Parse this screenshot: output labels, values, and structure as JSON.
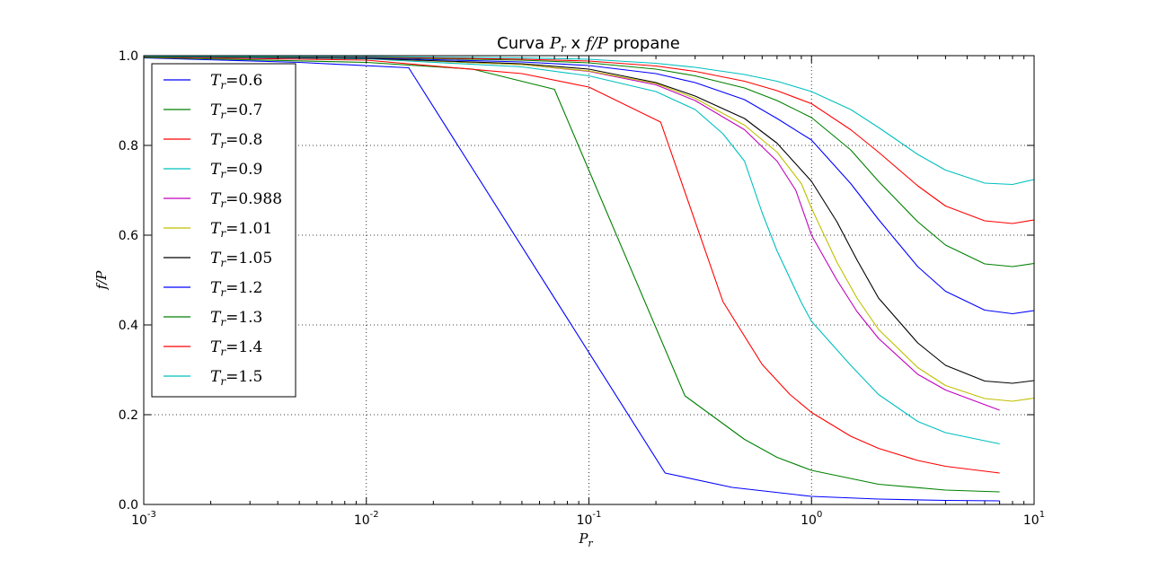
{
  "chart_data": {
    "type": "line",
    "title": {
      "prefix": "Curva ",
      "math1": "P",
      "math1_sub": "r",
      "middle": " x ",
      "math2": "f/P",
      "suffix": " propane"
    },
    "xlabel": {
      "text": "P",
      "sub": "r"
    },
    "ylabel": "f/P",
    "xscale": "log",
    "xlim": [
      0.001,
      10
    ],
    "ylim": [
      0.0,
      1.0
    ],
    "grid": true,
    "legend_position": "upper-left",
    "x_ticks": [
      {
        "value": 0.001,
        "base": "10",
        "exp": "-3"
      },
      {
        "value": 0.01,
        "base": "10",
        "exp": "-2"
      },
      {
        "value": 0.1,
        "base": "10",
        "exp": "-1"
      },
      {
        "value": 1,
        "base": "10",
        "exp": "0"
      },
      {
        "value": 10,
        "base": "10",
        "exp": "1"
      }
    ],
    "y_ticks": [
      {
        "value": 0.0,
        "label": "0.0"
      },
      {
        "value": 0.2,
        "label": "0.2"
      },
      {
        "value": 0.4,
        "label": "0.4"
      },
      {
        "value": 0.6,
        "label": "0.6"
      },
      {
        "value": 0.8,
        "label": "0.8"
      },
      {
        "value": 1.0,
        "label": "1.0"
      }
    ],
    "series": [
      {
        "legend_sym": "T",
        "legend_sub": "r",
        "legend_val": "=0.6",
        "color": "#0000ff",
        "points": [
          [
            0.001,
            0.995
          ],
          [
            0.005,
            0.985
          ],
          [
            0.0155,
            0.973
          ],
          [
            0.22,
            0.07
          ],
          [
            0.44,
            0.038
          ],
          [
            1.0,
            0.018
          ],
          [
            2.0,
            0.012
          ],
          [
            4.0,
            0.009
          ],
          [
            7.0,
            0.008
          ]
        ]
      },
      {
        "legend_sym": "T",
        "legend_sub": "r",
        "legend_val": "=0.7",
        "color": "#008000",
        "points": [
          [
            0.001,
            0.996
          ],
          [
            0.01,
            0.985
          ],
          [
            0.03,
            0.97
          ],
          [
            0.07,
            0.925
          ],
          [
            0.27,
            0.242
          ],
          [
            0.5,
            0.145
          ],
          [
            0.7,
            0.105
          ],
          [
            1.0,
            0.076
          ],
          [
            2.0,
            0.045
          ],
          [
            4.0,
            0.032
          ],
          [
            7.0,
            0.028
          ]
        ]
      },
      {
        "legend_sym": "T",
        "legend_sub": "r",
        "legend_val": "=0.8",
        "color": "#ff0000",
        "points": [
          [
            0.001,
            0.997
          ],
          [
            0.01,
            0.99
          ],
          [
            0.05,
            0.96
          ],
          [
            0.1,
            0.93
          ],
          [
            0.21,
            0.852
          ],
          [
            0.4,
            0.452
          ],
          [
            0.6,
            0.312
          ],
          [
            0.8,
            0.245
          ],
          [
            1.0,
            0.205
          ],
          [
            1.5,
            0.152
          ],
          [
            2.0,
            0.125
          ],
          [
            3.0,
            0.098
          ],
          [
            4.0,
            0.085
          ],
          [
            7.0,
            0.07
          ]
        ]
      },
      {
        "legend_sym": "T",
        "legend_sub": "r",
        "legend_val": "=0.9",
        "color": "#00bfbf",
        "points": [
          [
            0.001,
            0.998
          ],
          [
            0.01,
            0.993
          ],
          [
            0.05,
            0.975
          ],
          [
            0.1,
            0.955
          ],
          [
            0.2,
            0.92
          ],
          [
            0.3,
            0.88
          ],
          [
            0.4,
            0.826
          ],
          [
            0.5,
            0.765
          ],
          [
            0.6,
            0.65
          ],
          [
            0.7,
            0.565
          ],
          [
            0.9,
            0.45
          ],
          [
            1.0,
            0.408
          ],
          [
            1.5,
            0.31
          ],
          [
            2.0,
            0.245
          ],
          [
            3.0,
            0.185
          ],
          [
            4.0,
            0.16
          ],
          [
            7.0,
            0.135
          ]
        ]
      },
      {
        "legend_sym": "T",
        "legend_sub": "r",
        "legend_val": "=0.988",
        "color": "#bf00bf",
        "points": [
          [
            0.001,
            0.998
          ],
          [
            0.01,
            0.994
          ],
          [
            0.05,
            0.98
          ],
          [
            0.1,
            0.965
          ],
          [
            0.2,
            0.935
          ],
          [
            0.3,
            0.9
          ],
          [
            0.5,
            0.835
          ],
          [
            0.7,
            0.765
          ],
          [
            0.85,
            0.7
          ],
          [
            1.0,
            0.6
          ],
          [
            1.3,
            0.5
          ],
          [
            1.6,
            0.43
          ],
          [
            2.0,
            0.37
          ],
          [
            3.0,
            0.29
          ],
          [
            4.0,
            0.255
          ],
          [
            7.0,
            0.21
          ]
        ]
      },
      {
        "legend_sym": "T",
        "legend_sub": "r",
        "legend_val": "=1.01",
        "color": "#bfbf00",
        "points": [
          [
            0.001,
            0.998
          ],
          [
            0.01,
            0.994
          ],
          [
            0.05,
            0.98
          ],
          [
            0.1,
            0.966
          ],
          [
            0.2,
            0.938
          ],
          [
            0.3,
            0.905
          ],
          [
            0.5,
            0.845
          ],
          [
            0.7,
            0.785
          ],
          [
            0.9,
            0.715
          ],
          [
            1.0,
            0.66
          ],
          [
            1.3,
            0.54
          ],
          [
            1.6,
            0.46
          ],
          [
            2.0,
            0.39
          ],
          [
            3.0,
            0.305
          ],
          [
            4.0,
            0.265
          ],
          [
            6.0,
            0.236
          ],
          [
            8.0,
            0.23
          ],
          [
            10.0,
            0.237
          ]
        ]
      },
      {
        "legend_sym": "T",
        "legend_sub": "r",
        "legend_val": "=1.05",
        "color": "#000000",
        "points": [
          [
            0.001,
            0.998
          ],
          [
            0.01,
            0.994
          ],
          [
            0.05,
            0.982
          ],
          [
            0.1,
            0.97
          ],
          [
            0.2,
            0.94
          ],
          [
            0.3,
            0.91
          ],
          [
            0.5,
            0.86
          ],
          [
            0.7,
            0.805
          ],
          [
            1.0,
            0.72
          ],
          [
            1.3,
            0.63
          ],
          [
            1.6,
            0.545
          ],
          [
            2.0,
            0.46
          ],
          [
            3.0,
            0.36
          ],
          [
            4.0,
            0.31
          ],
          [
            6.0,
            0.275
          ],
          [
            8.0,
            0.27
          ],
          [
            10.0,
            0.276
          ]
        ]
      },
      {
        "legend_sym": "T",
        "legend_sub": "r",
        "legend_val": "=1.2",
        "color": "#0000ff",
        "points": [
          [
            0.001,
            0.998
          ],
          [
            0.01,
            0.995
          ],
          [
            0.05,
            0.986
          ],
          [
            0.1,
            0.978
          ],
          [
            0.2,
            0.96
          ],
          [
            0.3,
            0.94
          ],
          [
            0.5,
            0.902
          ],
          [
            0.7,
            0.86
          ],
          [
            1.0,
            0.812
          ],
          [
            1.5,
            0.715
          ],
          [
            2.0,
            0.635
          ],
          [
            3.0,
            0.53
          ],
          [
            4.0,
            0.475
          ],
          [
            6.0,
            0.433
          ],
          [
            8.0,
            0.425
          ],
          [
            10.0,
            0.432
          ]
        ]
      },
      {
        "legend_sym": "T",
        "legend_sub": "r",
        "legend_val": "=1.3",
        "color": "#008000",
        "points": [
          [
            0.001,
            0.998
          ],
          [
            0.01,
            0.996
          ],
          [
            0.05,
            0.99
          ],
          [
            0.1,
            0.984
          ],
          [
            0.2,
            0.97
          ],
          [
            0.3,
            0.955
          ],
          [
            0.5,
            0.928
          ],
          [
            0.7,
            0.9
          ],
          [
            1.0,
            0.862
          ],
          [
            1.5,
            0.79
          ],
          [
            2.0,
            0.72
          ],
          [
            3.0,
            0.63
          ],
          [
            4.0,
            0.578
          ],
          [
            6.0,
            0.536
          ],
          [
            8.0,
            0.53
          ],
          [
            10.0,
            0.537
          ]
        ]
      },
      {
        "legend_sym": "T",
        "legend_sub": "r",
        "legend_val": "=1.4",
        "color": "#ff0000",
        "points": [
          [
            0.001,
            0.999
          ],
          [
            0.01,
            0.997
          ],
          [
            0.05,
            0.992
          ],
          [
            0.1,
            0.988
          ],
          [
            0.2,
            0.977
          ],
          [
            0.3,
            0.965
          ],
          [
            0.5,
            0.943
          ],
          [
            0.7,
            0.922
          ],
          [
            1.0,
            0.893
          ],
          [
            1.5,
            0.835
          ],
          [
            2.0,
            0.785
          ],
          [
            3.0,
            0.71
          ],
          [
            4.0,
            0.665
          ],
          [
            6.0,
            0.632
          ],
          [
            8.0,
            0.626
          ],
          [
            10.0,
            0.634
          ]
        ]
      },
      {
        "legend_sym": "T",
        "legend_sub": "r",
        "legend_val": "=1.5",
        "color": "#00bfbf",
        "points": [
          [
            0.001,
            0.999
          ],
          [
            0.01,
            0.998
          ],
          [
            0.05,
            0.995
          ],
          [
            0.1,
            0.992
          ],
          [
            0.2,
            0.983
          ],
          [
            0.3,
            0.974
          ],
          [
            0.5,
            0.958
          ],
          [
            0.7,
            0.943
          ],
          [
            1.0,
            0.92
          ],
          [
            1.5,
            0.88
          ],
          [
            2.0,
            0.84
          ],
          [
            3.0,
            0.78
          ],
          [
            4.0,
            0.745
          ],
          [
            6.0,
            0.716
          ],
          [
            8.0,
            0.713
          ],
          [
            10.0,
            0.724
          ]
        ]
      }
    ]
  }
}
